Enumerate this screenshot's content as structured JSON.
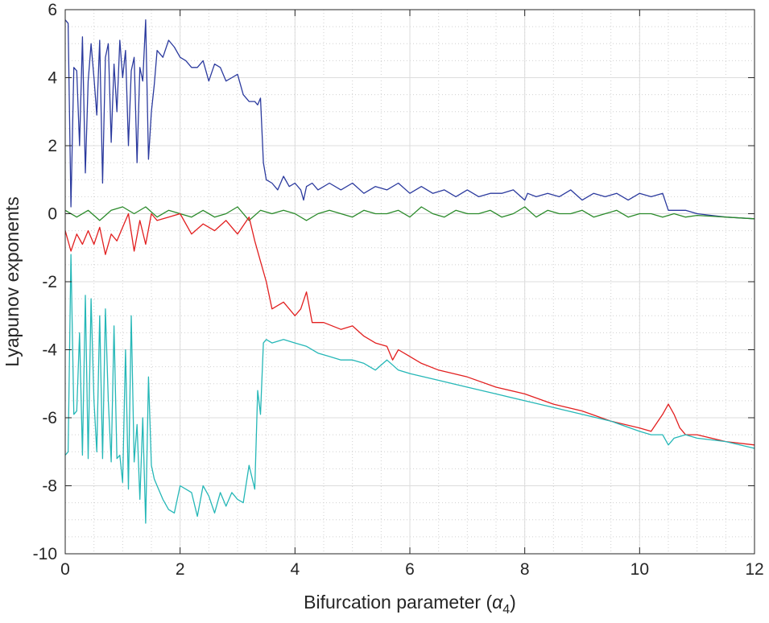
{
  "chart_data": {
    "type": "line",
    "xlabel": "Bifurcation parameter (",
    "xlabel_symbol": "α",
    "xlabel_subscript": "4",
    "xlabel_close": ")",
    "ylabel": "Lyapunov exponents",
    "xlim": [
      0,
      12
    ],
    "ylim": [
      -10,
      6
    ],
    "xticks": [
      0,
      2,
      4,
      6,
      8,
      10,
      12
    ],
    "yticks": [
      6,
      4,
      2,
      0,
      -2,
      -4,
      -6,
      -8,
      -10
    ],
    "grid": true,
    "minor_grid": true,
    "series": [
      {
        "color": "#2b3a9e",
        "x": [
          0,
          0.05,
          0.1,
          0.15,
          0.2,
          0.25,
          0.3,
          0.35,
          0.4,
          0.45,
          0.5,
          0.55,
          0.6,
          0.65,
          0.7,
          0.75,
          0.8,
          0.85,
          0.9,
          0.95,
          1.0,
          1.05,
          1.1,
          1.15,
          1.2,
          1.25,
          1.3,
          1.35,
          1.4,
          1.45,
          1.5,
          1.55,
          1.6,
          1.7,
          1.8,
          1.9,
          2.0,
          2.1,
          2.2,
          2.3,
          2.4,
          2.5,
          2.6,
          2.7,
          2.8,
          2.9,
          3.0,
          3.1,
          3.2,
          3.3,
          3.35,
          3.4,
          3.45,
          3.5,
          3.6,
          3.7,
          3.8,
          3.9,
          4.0,
          4.1,
          4.15,
          4.2,
          4.3,
          4.4,
          4.6,
          4.8,
          5.0,
          5.2,
          5.4,
          5.6,
          5.8,
          6.0,
          6.2,
          6.4,
          6.6,
          6.8,
          7.0,
          7.2,
          7.4,
          7.6,
          7.8,
          8.0,
          8.05,
          8.2,
          8.4,
          8.6,
          8.8,
          9.0,
          9.2,
          9.4,
          9.6,
          9.8,
          10.0,
          10.2,
          10.4,
          10.5,
          10.6,
          10.8,
          11.0,
          11.5,
          12.0
        ],
        "values": [
          5.7,
          5.6,
          0.2,
          4.3,
          4.2,
          2.0,
          5.2,
          1.2,
          3.9,
          5.0,
          4.0,
          2.9,
          5.1,
          0.9,
          4.6,
          5.0,
          2.1,
          4.4,
          3.0,
          5.1,
          4.0,
          4.8,
          2.0,
          4.2,
          4.6,
          1.5,
          4.3,
          3.9,
          5.7,
          1.6,
          3.0,
          3.8,
          4.8,
          4.6,
          5.1,
          4.9,
          4.6,
          4.5,
          4.3,
          4.3,
          4.5,
          3.9,
          4.4,
          4.3,
          3.9,
          4.0,
          4.1,
          3.5,
          3.3,
          3.3,
          3.2,
          3.4,
          1.5,
          1.0,
          0.9,
          0.7,
          1.1,
          0.8,
          0.9,
          0.7,
          0.4,
          0.8,
          0.9,
          0.7,
          0.9,
          0.7,
          0.9,
          0.6,
          0.8,
          0.7,
          0.9,
          0.6,
          0.8,
          0.6,
          0.7,
          0.5,
          0.7,
          0.5,
          0.6,
          0.6,
          0.7,
          0.4,
          0.6,
          0.5,
          0.6,
          0.5,
          0.7,
          0.4,
          0.6,
          0.5,
          0.6,
          0.4,
          0.6,
          0.5,
          0.6,
          0.1,
          0.1,
          0.1,
          0.0,
          -0.1,
          -0.15
        ]
      },
      {
        "color": "#2a8a2a",
        "x": [
          0,
          0.2,
          0.4,
          0.6,
          0.8,
          1.0,
          1.2,
          1.4,
          1.6,
          1.8,
          2.0,
          2.2,
          2.4,
          2.6,
          2.8,
          3.0,
          3.2,
          3.4,
          3.6,
          3.8,
          4.0,
          4.2,
          4.4,
          4.6,
          4.8,
          5.0,
          5.2,
          5.4,
          5.6,
          5.8,
          6.0,
          6.2,
          6.4,
          6.6,
          6.8,
          7.0,
          7.2,
          7.4,
          7.6,
          7.8,
          8.0,
          8.2,
          8.4,
          8.6,
          8.8,
          9.0,
          9.2,
          9.4,
          9.6,
          9.8,
          10.0,
          10.2,
          10.4,
          10.6,
          10.8,
          11.0,
          11.5,
          12.0
        ],
        "values": [
          0.1,
          -0.1,
          0.1,
          -0.2,
          0.1,
          0.2,
          0.0,
          0.2,
          -0.1,
          0.1,
          0.0,
          -0.1,
          0.1,
          -0.1,
          0.0,
          0.2,
          -0.2,
          0.1,
          0.0,
          0.1,
          0.0,
          -0.2,
          0.0,
          0.1,
          0.0,
          -0.1,
          0.1,
          0.0,
          0.0,
          0.1,
          -0.1,
          0.2,
          0.0,
          -0.1,
          0.1,
          0.0,
          0.0,
          0.1,
          -0.1,
          0.0,
          0.2,
          -0.1,
          0.1,
          0.0,
          0.0,
          0.1,
          -0.1,
          0.0,
          0.1,
          -0.1,
          0.0,
          0.0,
          -0.1,
          0.0,
          -0.1,
          -0.05,
          -0.1,
          -0.15
        ]
      },
      {
        "color": "#e21f1f",
        "x": [
          0,
          0.1,
          0.2,
          0.3,
          0.4,
          0.5,
          0.6,
          0.7,
          0.8,
          0.9,
          1.0,
          1.1,
          1.2,
          1.3,
          1.4,
          1.5,
          1.6,
          1.8,
          2.0,
          2.2,
          2.4,
          2.6,
          2.8,
          3.0,
          3.2,
          3.3,
          3.4,
          3.5,
          3.6,
          3.8,
          4.0,
          4.1,
          4.2,
          4.3,
          4.5,
          4.8,
          5.0,
          5.2,
          5.4,
          5.6,
          5.7,
          5.8,
          6.0,
          6.2,
          6.5,
          7.0,
          7.5,
          8.0,
          8.5,
          9.0,
          9.5,
          10.0,
          10.2,
          10.4,
          10.5,
          10.6,
          10.7,
          10.8,
          11.0,
          11.5,
          12.0
        ],
        "values": [
          -0.5,
          -1.1,
          -0.6,
          -0.9,
          -0.5,
          -0.9,
          -0.4,
          -1.2,
          -0.6,
          -0.8,
          -0.4,
          0.0,
          -1.1,
          -0.2,
          -0.9,
          0.0,
          -0.2,
          -0.1,
          0.0,
          -0.6,
          -0.3,
          -0.5,
          -0.2,
          -0.6,
          -0.1,
          -0.8,
          -1.4,
          -2.0,
          -2.8,
          -2.6,
          -3.0,
          -2.8,
          -2.3,
          -3.2,
          -3.2,
          -3.4,
          -3.3,
          -3.6,
          -3.8,
          -3.9,
          -4.3,
          -4.0,
          -4.2,
          -4.4,
          -4.6,
          -4.8,
          -5.1,
          -5.3,
          -5.6,
          -5.8,
          -6.1,
          -6.3,
          -6.4,
          -5.9,
          -5.6,
          -5.9,
          -6.3,
          -6.5,
          -6.5,
          -6.7,
          -6.8
        ]
      },
      {
        "color": "#25b7b7",
        "x": [
          0,
          0.05,
          0.1,
          0.15,
          0.2,
          0.25,
          0.3,
          0.35,
          0.4,
          0.45,
          0.5,
          0.55,
          0.6,
          0.65,
          0.7,
          0.75,
          0.8,
          0.85,
          0.9,
          0.95,
          1.0,
          1.05,
          1.1,
          1.15,
          1.2,
          1.25,
          1.3,
          1.35,
          1.4,
          1.45,
          1.5,
          1.55,
          1.6,
          1.7,
          1.8,
          1.9,
          2.0,
          2.1,
          2.2,
          2.3,
          2.4,
          2.5,
          2.6,
          2.7,
          2.8,
          2.9,
          3.0,
          3.1,
          3.2,
          3.3,
          3.35,
          3.4,
          3.45,
          3.5,
          3.6,
          3.8,
          4.0,
          4.2,
          4.4,
          4.6,
          4.8,
          5.0,
          5.2,
          5.4,
          5.6,
          5.8,
          6.0,
          6.5,
          7.0,
          7.5,
          8.0,
          8.5,
          9.0,
          9.5,
          10.0,
          10.2,
          10.4,
          10.5,
          10.6,
          10.8,
          11.0,
          11.5,
          12.0
        ],
        "values": [
          -7.1,
          -7.0,
          -1.2,
          -5.9,
          -5.8,
          -3.5,
          -7.1,
          -2.4,
          -7.2,
          -2.5,
          -5.5,
          -7.0,
          -3.0,
          -7.2,
          -2.8,
          -5.5,
          -7.3,
          -3.3,
          -7.2,
          -7.1,
          -7.9,
          -4.0,
          -8.1,
          -3.0,
          -7.3,
          -6.2,
          -8.4,
          -6.0,
          -9.1,
          -4.8,
          -7.4,
          -7.8,
          -8.0,
          -8.4,
          -8.7,
          -8.8,
          -8.0,
          -8.1,
          -8.2,
          -8.9,
          -8.0,
          -8.3,
          -8.8,
          -8.2,
          -8.6,
          -8.2,
          -8.4,
          -8.5,
          -7.4,
          -8.1,
          -5.2,
          -5.9,
          -3.8,
          -3.7,
          -3.8,
          -3.7,
          -3.8,
          -3.9,
          -4.1,
          -4.2,
          -4.3,
          -4.3,
          -4.4,
          -4.6,
          -4.3,
          -4.6,
          -4.7,
          -4.9,
          -5.1,
          -5.3,
          -5.5,
          -5.7,
          -5.9,
          -6.1,
          -6.4,
          -6.5,
          -6.5,
          -6.8,
          -6.6,
          -6.5,
          -6.6,
          -6.7,
          -6.9
        ]
      }
    ]
  }
}
